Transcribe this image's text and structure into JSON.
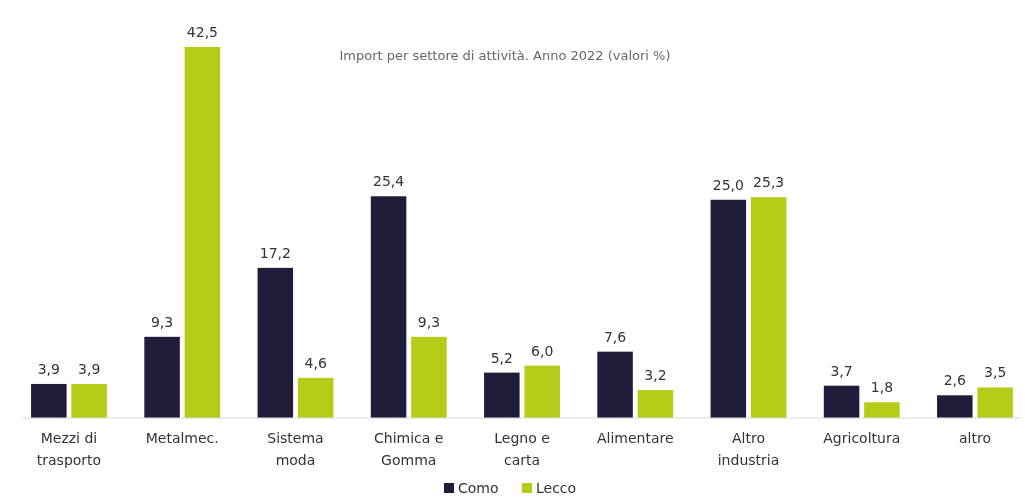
{
  "chart_data": {
    "type": "bar",
    "title": "Import per settore di attività. Anno 2022 (valori %)",
    "categories": [
      "Mezzi di trasporto",
      "Metalmec.",
      "Sistema moda",
      "Chimica e Gomma",
      "Legno e carta",
      "Alimentare",
      "Altro industria",
      "Agricoltura",
      "altro"
    ],
    "series": [
      {
        "name": "Como",
        "color": "#1f1d3a",
        "values": [
          3.9,
          9.3,
          17.2,
          25.4,
          5.2,
          7.6,
          25.0,
          3.7,
          2.6
        ],
        "value_labels": [
          "3,9",
          "9,3",
          "17,2",
          "25,4",
          "5,2",
          "7,6",
          "25,0",
          "3,7",
          "2,6"
        ]
      },
      {
        "name": "Lecco",
        "color": "#b5cc18",
        "values": [
          3.9,
          42.5,
          4.6,
          9.3,
          6.0,
          3.2,
          25.3,
          1.8,
          3.5
        ],
        "value_labels": [
          "3,9",
          "42,5",
          "4,6",
          "9,3",
          "6,0",
          "3,2",
          "25,3",
          "1,8",
          "3,5"
        ]
      }
    ],
    "legend": "bottom"
  }
}
